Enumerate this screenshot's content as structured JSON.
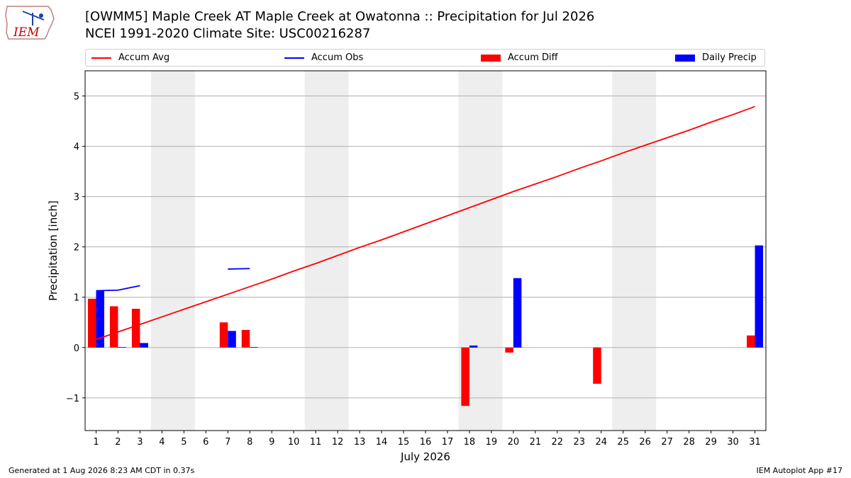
{
  "logo": {
    "text": "IEM",
    "icon": "iowa-state-outline-icon"
  },
  "header": {
    "title_line1": "[OWMM5] Maple Creek  AT Maple Creek at Owatonna :: Precipitation for Jul 2026",
    "title_line2": "NCEI 1991-2020 Climate Site: USC00216287"
  },
  "legend": {
    "placement": "top",
    "items": [
      {
        "label": "Accum Avg",
        "kind": "line",
        "color": "#ff0000"
      },
      {
        "label": "Accum Obs",
        "kind": "line",
        "color": "#0000ff"
      },
      {
        "label": "Accum Diff",
        "kind": "bar",
        "color": "#ff0000"
      },
      {
        "label": "Daily Precip",
        "kind": "bar",
        "color": "#0000ff"
      }
    ]
  },
  "footer": {
    "left": "Generated at 1 Aug 2026 8:23 AM CDT in 0.37s",
    "right": "IEM Autoplot App #17"
  },
  "chart_data": {
    "type": "bar",
    "xlabel": "July 2026",
    "ylabel": "Precipitation [inch]",
    "x": [
      1,
      2,
      3,
      4,
      5,
      6,
      7,
      8,
      9,
      10,
      11,
      12,
      13,
      14,
      15,
      16,
      17,
      18,
      19,
      20,
      21,
      22,
      23,
      24,
      25,
      26,
      27,
      28,
      29,
      30,
      31
    ],
    "xlim": [
      0.5,
      31.5
    ],
    "ylim": [
      -1.65,
      5.5
    ],
    "yticks": [
      -1,
      0,
      1,
      2,
      3,
      4,
      5
    ],
    "ytick_labels": [
      "−1",
      "0",
      "1",
      "2",
      "3",
      "4",
      "5"
    ],
    "grid": "y",
    "weekend_shading": [
      [
        3.5,
        5.5
      ],
      [
        10.5,
        12.5
      ],
      [
        17.5,
        19.5
      ],
      [
        24.5,
        26.5
      ]
    ],
    "series": [
      {
        "name": "Accum Avg",
        "kind": "line",
        "color": "#ff0000",
        "values": [
          0.16,
          0.31,
          0.46,
          0.61,
          0.76,
          0.91,
          1.06,
          1.21,
          1.36,
          1.52,
          1.67,
          1.83,
          1.99,
          2.14,
          2.3,
          2.46,
          2.62,
          2.78,
          2.94,
          3.1,
          3.25,
          3.4,
          3.56,
          3.71,
          3.87,
          4.02,
          4.17,
          4.32,
          4.48,
          4.63,
          4.79
        ]
      },
      {
        "name": "Accum Obs",
        "kind": "line",
        "color": "#0000ff",
        "values": [
          1.13,
          1.14,
          1.23,
          null,
          null,
          null,
          1.56,
          1.57,
          null,
          null,
          null,
          null,
          null,
          null,
          null,
          null,
          null,
          null,
          null,
          null,
          null,
          null,
          null,
          null,
          null,
          null,
          null,
          null,
          null,
          null,
          null
        ]
      },
      {
        "name": "Accum Diff",
        "kind": "bar",
        "color": "#ff0000",
        "values": [
          0.97,
          0.82,
          0.77,
          null,
          null,
          null,
          0.5,
          0.35,
          null,
          null,
          null,
          null,
          null,
          null,
          null,
          null,
          null,
          -1.16,
          null,
          -0.1,
          null,
          null,
          null,
          -0.72,
          null,
          null,
          null,
          null,
          null,
          null,
          0.24
        ]
      },
      {
        "name": "Daily Precip",
        "kind": "bar",
        "color": "#0000ff",
        "values": [
          1.13,
          0.01,
          0.09,
          null,
          null,
          null,
          0.33,
          0.01,
          null,
          null,
          null,
          null,
          null,
          null,
          null,
          null,
          null,
          0.04,
          null,
          1.38,
          null,
          null,
          null,
          null,
          null,
          null,
          null,
          null,
          null,
          null,
          2.03
        ]
      }
    ]
  }
}
